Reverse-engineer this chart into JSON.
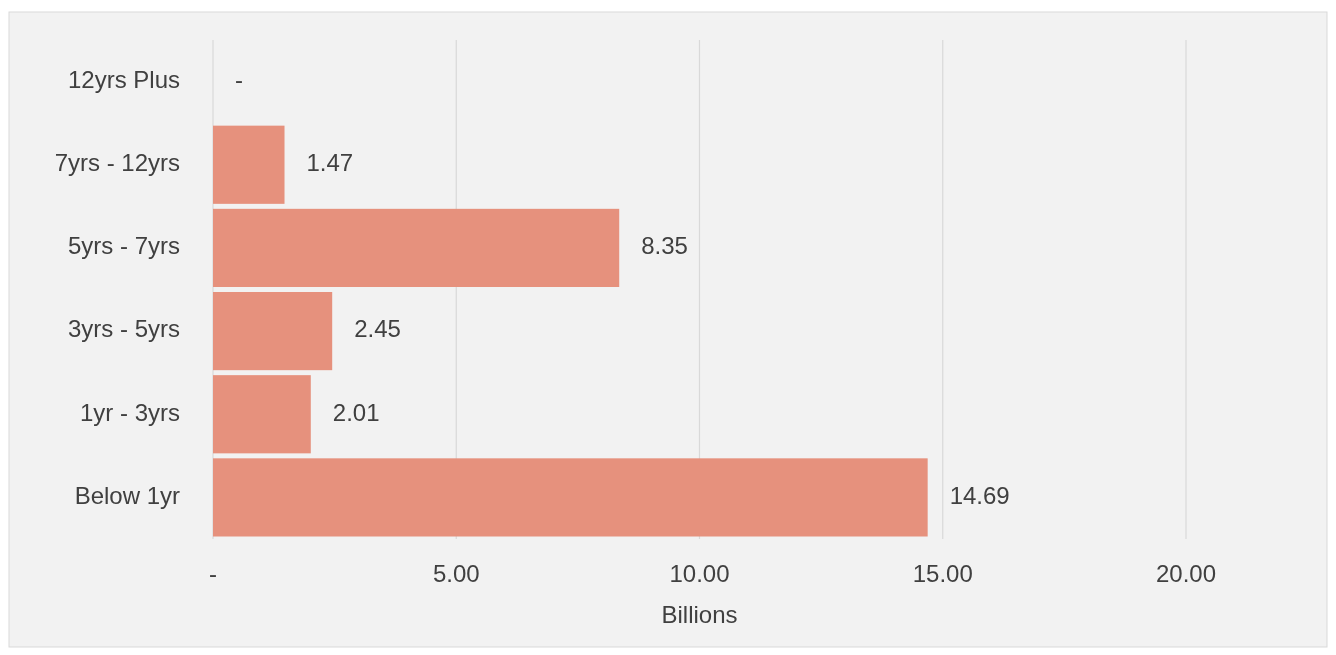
{
  "chart_data": {
    "type": "bar",
    "orientation": "horizontal",
    "categories": [
      "12yrs Plus",
      "7yrs - 12yrs",
      "5yrs - 7yrs",
      "3yrs - 5yrs",
      "1yr - 3yrs",
      "Below 1yr"
    ],
    "values": [
      0,
      1.47,
      8.35,
      2.45,
      2.01,
      14.69
    ],
    "value_labels": [
      "-",
      "1.47",
      "8.35",
      "2.45",
      "2.01",
      "14.69"
    ],
    "color": "#e6917d",
    "xlim": [
      0,
      20
    ],
    "xticks": [
      {
        "value": 0,
        "label": "-"
      },
      {
        "value": 5,
        "label": "5.00"
      },
      {
        "value": 10,
        "label": "10.00"
      },
      {
        "value": 15,
        "label": "15.00"
      },
      {
        "value": 20,
        "label": "20.00"
      }
    ],
    "xlabel": "Billions",
    "grid": "x"
  }
}
